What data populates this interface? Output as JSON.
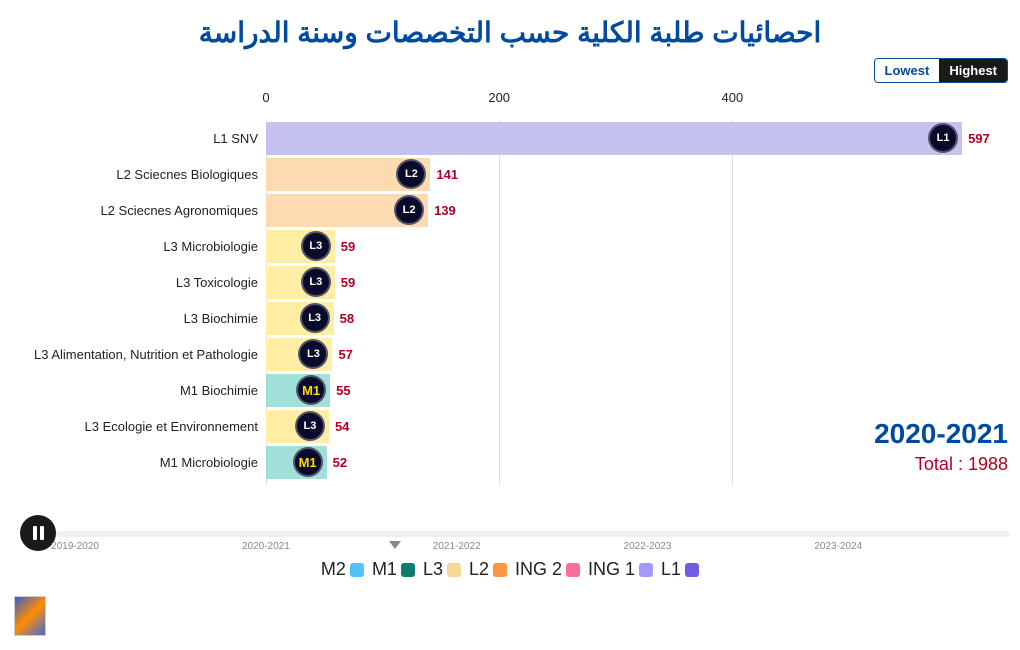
{
  "title": "احصائيات طلبة الكلية حسب التخصصات وسنة الدراسة",
  "sort_toggle": {
    "lowest": "Lowest",
    "highest": "Highest"
  },
  "chart": {
    "type": "bar",
    "x_axis": {
      "ticks": [
        0,
        200,
        400
      ],
      "max": 600,
      "scale": 1.166
    },
    "bars": [
      {
        "label": "L1 SNV",
        "value": 597,
        "color": "#c5c1f0",
        "value_color": "#b00020",
        "icon_text": "L1",
        "icon_style": "l1"
      },
      {
        "label": "L2 Sciecnes Biologiques",
        "value": 141,
        "color": "#fddab0",
        "value_color": "#b00020",
        "icon_text": "L2",
        "icon_style": "l2"
      },
      {
        "label": "L2 Sciecnes Agronomiques",
        "value": 139,
        "color": "#fddab0",
        "value_color": "#b00020",
        "icon_text": "L2",
        "icon_style": "l2"
      },
      {
        "label": "L3 Microbiologie",
        "value": 59,
        "color": "#ffeda3",
        "value_color": "#b00020",
        "icon_text": "L3",
        "icon_style": "l3"
      },
      {
        "label": "L3 Toxicologie",
        "value": 59,
        "color": "#ffeda3",
        "value_color": "#b00020",
        "icon_text": "L3",
        "icon_style": "l3"
      },
      {
        "label": "L3 Biochimie",
        "value": 58,
        "color": "#ffeda3",
        "value_color": "#b00020",
        "icon_text": "L3",
        "icon_style": "l3"
      },
      {
        "label": "L3 Alimentation, Nutrition et Pathologie",
        "value": 57,
        "color": "#ffeda3",
        "value_color": "#b00020",
        "icon_text": "L3",
        "icon_style": "l3"
      },
      {
        "label": "M1 Biochimie",
        "value": 55,
        "color": "#a0e0d8",
        "value_color": "#b00020",
        "icon_text": "M1",
        "icon_style": "m1"
      },
      {
        "label": "L3 Ecologie et Environnement",
        "value": 54,
        "color": "#ffeda3",
        "value_color": "#b00020",
        "icon_text": "L3",
        "icon_style": "l3"
      },
      {
        "label": "M1 Microbiologie",
        "value": 52,
        "color": "#a0e0d8",
        "value_color": "#b00020",
        "icon_text": "M1",
        "icon_style": "m1"
      }
    ],
    "gridlines": [
      0,
      200,
      400
    ]
  },
  "year": "2020-2021",
  "total": "Total : 1988",
  "timeline": {
    "labels": [
      "2019-2020",
      "2020-2021",
      "2021-2022",
      "2022-2023",
      "2023-2024"
    ],
    "marker_position": 35.5
  },
  "legend": [
    {
      "label": "L1",
      "color": "#6c5ce7"
    },
    {
      "label": "ING 1",
      "color": "#a29bfe"
    },
    {
      "label": "ING 2",
      "color": "#ff6b9d"
    },
    {
      "label": "L2",
      "color": "#fd9644"
    },
    {
      "label": "L3",
      "color": "#f7d794"
    },
    {
      "label": "M1",
      "color": "#0a7d6c"
    },
    {
      "label": "M2",
      "color": "#4fc3f7"
    }
  ]
}
